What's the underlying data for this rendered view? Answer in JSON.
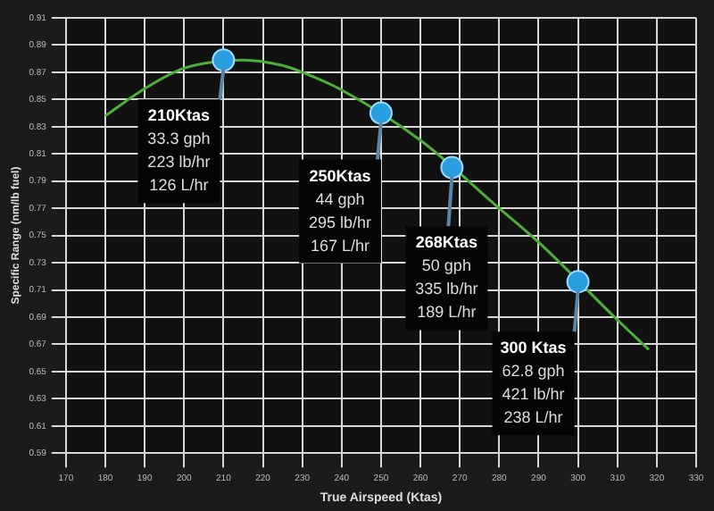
{
  "chart_data": {
    "type": "line",
    "xlabel": "True Airspeed (Ktas)",
    "ylabel": "Specific Range (nm/lb fuel)",
    "xlim": [
      170,
      330
    ],
    "xticks": [
      170,
      180,
      190,
      200,
      210,
      220,
      230,
      240,
      250,
      260,
      270,
      280,
      290,
      300,
      310,
      320,
      330
    ],
    "ylim": [
      0.59,
      0.91
    ],
    "yticks": [
      0.59,
      0.61,
      0.63,
      0.65,
      0.67,
      0.69,
      0.71,
      0.73,
      0.75,
      0.77,
      0.79,
      0.81,
      0.83,
      0.85,
      0.87,
      0.89,
      0.91
    ],
    "grid": true,
    "legend": false,
    "series": [
      {
        "type": "line",
        "color": "#4caf3a",
        "marker": "none",
        "x": [
          180,
          190,
          200,
          215,
          225,
          230,
          240,
          260,
          280,
          290,
          310,
          318
        ],
        "values": [
          0.838,
          0.858,
          0.873,
          0.879,
          0.875,
          0.87,
          0.857,
          0.82,
          0.77,
          0.745,
          0.688,
          0.666
        ]
      },
      {
        "type": "scatter",
        "color": "#2a9fe0",
        "marker": "circle",
        "x": [
          210,
          250,
          268,
          300
        ],
        "values": [
          0.879,
          0.84,
          0.8,
          0.716
        ]
      }
    ],
    "annotations": [
      {
        "text": "210Ktas\n33.3 gph\n223 lb/hr\n126 L/hr",
        "x": 210,
        "y": 0.879
      },
      {
        "text": "250Ktas\n44 gph\n295 lb/hr\n167 L/hr",
        "x": 250,
        "y": 0.84
      },
      {
        "text": "268Ktas\n50 gph\n335 lb/hr\n189 L/hr",
        "x": 268,
        "y": 0.8
      },
      {
        "text": "300 Ktas\n62.8 gph\n421 lb/hr\n238 L/hr",
        "x": 300,
        "y": 0.716
      }
    ]
  }
}
